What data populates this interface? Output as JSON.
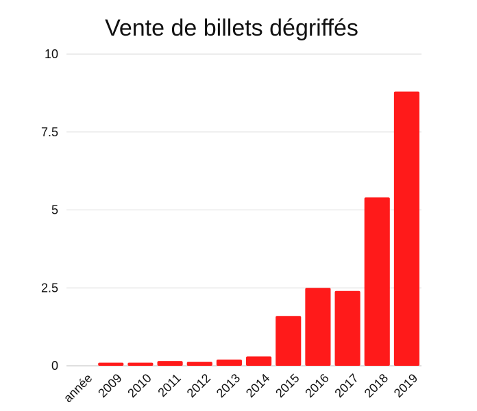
{
  "colors": {
    "bar": "#ff1a1a",
    "grid": "#d9d9d9",
    "text": "#111111",
    "background": "#ffffff"
  },
  "chart_data": {
    "type": "bar",
    "title": "Vente de billets dégriffés",
    "xlabel": "",
    "ylabel": "",
    "categories": [
      "année",
      "2009",
      "2010",
      "2011",
      "2012",
      "2013",
      "2014",
      "2015",
      "2016",
      "2017",
      "2018",
      "2019"
    ],
    "values": [
      null,
      0.1,
      0.1,
      0.15,
      0.13,
      0.2,
      0.3,
      1.6,
      2.5,
      2.4,
      5.4,
      8.8
    ],
    "ylim": [
      0,
      10
    ],
    "yticks": [
      0,
      2.5,
      5,
      7.5,
      10
    ],
    "ytick_labels": [
      "0",
      "2.5",
      "5",
      "7.5",
      "10"
    ],
    "grid": true,
    "legend": "none"
  }
}
